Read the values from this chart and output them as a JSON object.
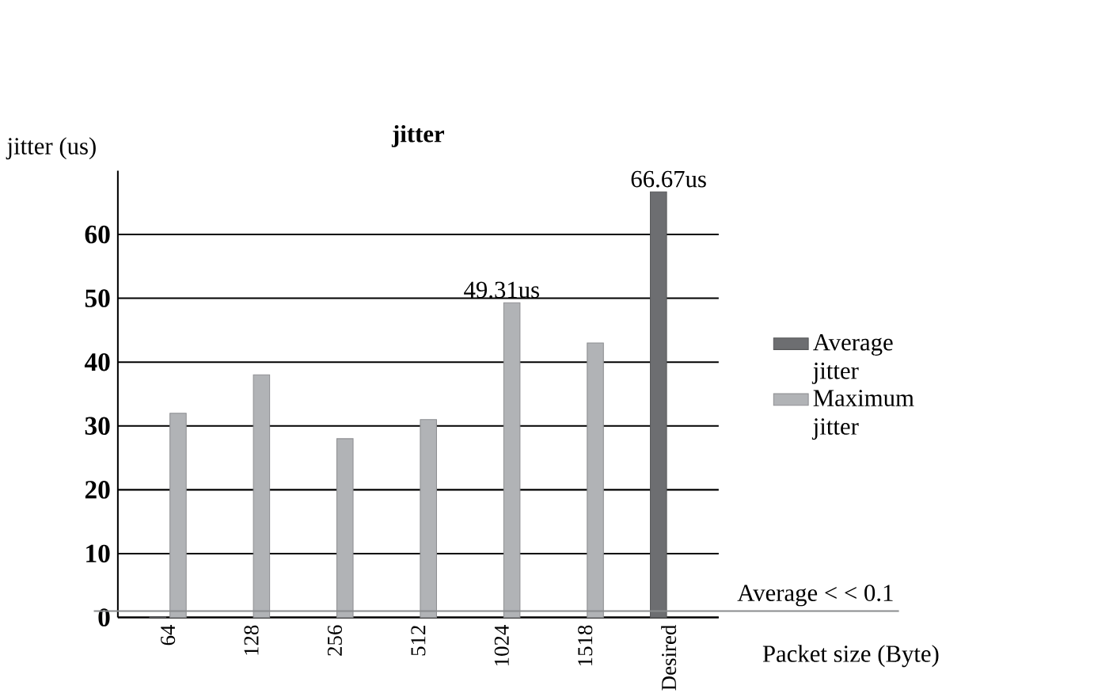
{
  "chart_data": {
    "type": "bar",
    "title": "jitter",
    "xlabel": "Packet size (Byte)",
    "ylabel": "jitter (us)",
    "categories": [
      "64",
      "128",
      "256",
      "512",
      "1024",
      "1518",
      "Desired"
    ],
    "series": [
      {
        "name": "Average jitter",
        "color": "#6d6e71",
        "values": [
          0.1,
          null,
          null,
          null,
          null,
          null,
          66.67
        ],
        "value_labels": [
          null,
          null,
          null,
          null,
          null,
          null,
          "66.67us"
        ]
      },
      {
        "name": "Maximum jitter",
        "color": "#b1b3b6",
        "values": [
          32,
          38,
          28,
          31,
          49.31,
          43,
          null
        ],
        "value_labels": [
          null,
          null,
          null,
          null,
          "49.31us",
          null,
          null
        ]
      }
    ],
    "ylim": [
      0,
      70
    ],
    "yticks": [
      0,
      10,
      20,
      30,
      40,
      50,
      60
    ],
    "grid": "y",
    "legend": "right",
    "ref_lines": [
      {
        "axis": "y",
        "value": 1,
        "label": "Average < < 0.1",
        "color": "#8a8c8e"
      }
    ]
  }
}
